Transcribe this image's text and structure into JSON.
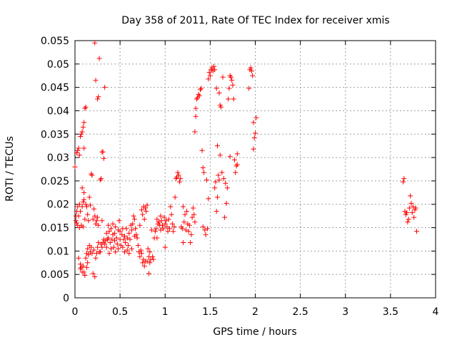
{
  "chart_data": {
    "type": "scatter",
    "title": "Day 358 of 2011, Rate Of TEC Index for receiver xmis",
    "xlabel": "GPS time / hours",
    "ylabel": "ROTI / TECUs",
    "xlim": [
      0,
      4
    ],
    "ylim": [
      0,
      0.055
    ],
    "x_ticks": [
      "0",
      "0.5",
      "1",
      "1.5",
      "2",
      "2.5",
      "3",
      "3.5",
      "4"
    ],
    "y_ticks": [
      "0",
      "0.005",
      "0.01",
      "0.015",
      "0.02",
      "0.025",
      "0.03",
      "0.035",
      "0.04",
      "0.045",
      "0.05",
      "0.055"
    ],
    "grid": true,
    "marker": "+",
    "color": "#ff0000",
    "series": [
      {
        "name": "",
        "points": [
          [
            0.0,
            0.028
          ],
          [
            0.01,
            0.0175
          ],
          [
            0.01,
            0.0165
          ],
          [
            0.02,
            0.031
          ],
          [
            0.02,
            0.0185
          ],
          [
            0.02,
            0.016
          ],
          [
            0.03,
            0.0315
          ],
          [
            0.03,
            0.0195
          ],
          [
            0.03,
            0.0155
          ],
          [
            0.04,
            0.032
          ],
          [
            0.04,
            0.0175
          ],
          [
            0.04,
            0.0085
          ],
          [
            0.05,
            0.0305
          ],
          [
            0.05,
            0.02
          ],
          [
            0.05,
            0.015
          ],
          [
            0.06,
            0.0345
          ],
          [
            0.06,
            0.0185
          ],
          [
            0.06,
            0.0072
          ],
          [
            0.06,
            0.0062
          ],
          [
            0.07,
            0.035
          ],
          [
            0.07,
            0.0155
          ],
          [
            0.07,
            0.0065
          ],
          [
            0.08,
            0.0355
          ],
          [
            0.08,
            0.0195
          ],
          [
            0.08,
            0.0235
          ],
          [
            0.08,
            0.0055
          ],
          [
            0.09,
            0.0365
          ],
          [
            0.09,
            0.0205
          ],
          [
            0.09,
            0.0068
          ],
          [
            0.09,
            0.0152
          ],
          [
            0.1,
            0.0375
          ],
          [
            0.1,
            0.032
          ],
          [
            0.1,
            0.021
          ],
          [
            0.1,
            0.0055
          ],
          [
            0.1,
            0.0225
          ],
          [
            0.11,
            0.0405
          ],
          [
            0.11,
            0.0168
          ],
          [
            0.11,
            0.0048
          ],
          [
            0.12,
            0.0408
          ],
          [
            0.12,
            0.02
          ],
          [
            0.12,
            0.0085
          ],
          [
            0.13,
            0.0195
          ],
          [
            0.13,
            0.0095
          ],
          [
            0.13,
            0.0065
          ],
          [
            0.14,
            0.0178
          ],
          [
            0.14,
            0.0105
          ],
          [
            0.14,
            0.0075
          ],
          [
            0.15,
            0.0165
          ],
          [
            0.15,
            0.0092
          ],
          [
            0.16,
            0.0215
          ],
          [
            0.16,
            0.0112
          ],
          [
            0.17,
            0.0198
          ],
          [
            0.17,
            0.0098
          ],
          [
            0.18,
            0.0265
          ],
          [
            0.18,
            0.0108
          ],
          [
            0.19,
            0.0262
          ],
          [
            0.19,
            0.0095
          ],
          [
            0.2,
            0.0168
          ],
          [
            0.2,
            0.0052
          ],
          [
            0.21,
            0.019
          ],
          [
            0.21,
            0.0102
          ],
          [
            0.22,
            0.0545
          ],
          [
            0.22,
            0.0175
          ],
          [
            0.22,
            0.0045
          ],
          [
            0.23,
            0.0465
          ],
          [
            0.23,
            0.0158
          ],
          [
            0.23,
            0.0085
          ],
          [
            0.24,
            0.0165
          ],
          [
            0.24,
            0.0095
          ],
          [
            0.25,
            0.0425
          ],
          [
            0.25,
            0.0172
          ],
          [
            0.25,
            0.0108
          ],
          [
            0.26,
            0.043
          ],
          [
            0.26,
            0.0155
          ],
          [
            0.26,
            0.0118
          ],
          [
            0.27,
            0.0512
          ],
          [
            0.27,
            0.0098
          ],
          [
            0.28,
            0.0252
          ],
          [
            0.28,
            0.0098
          ],
          [
            0.29,
            0.0255
          ],
          [
            0.29,
            0.0115
          ],
          [
            0.3,
            0.0312
          ],
          [
            0.3,
            0.0108
          ],
          [
            0.3,
            0.0165
          ],
          [
            0.31,
            0.0312
          ],
          [
            0.31,
            0.0118
          ],
          [
            0.32,
            0.0298
          ],
          [
            0.32,
            0.0125
          ],
          [
            0.33,
            0.045
          ],
          [
            0.33,
            0.0115
          ],
          [
            0.34,
            0.0122
          ],
          [
            0.35,
            0.0138
          ],
          [
            0.35,
            0.0108
          ],
          [
            0.36,
            0.0125
          ],
          [
            0.37,
            0.0128
          ],
          [
            0.37,
            0.0155
          ],
          [
            0.38,
            0.0142
          ],
          [
            0.38,
            0.0095
          ],
          [
            0.39,
            0.0118
          ],
          [
            0.4,
            0.0148
          ],
          [
            0.4,
            0.0105
          ],
          [
            0.41,
            0.0125
          ],
          [
            0.42,
            0.0135
          ],
          [
            0.42,
            0.0158
          ],
          [
            0.43,
            0.0108
          ],
          [
            0.44,
            0.0138
          ],
          [
            0.44,
            0.0122
          ],
          [
            0.45,
            0.0152
          ],
          [
            0.45,
            0.0098
          ],
          [
            0.46,
            0.0128
          ],
          [
            0.47,
            0.0115
          ],
          [
            0.48,
            0.0145
          ],
          [
            0.48,
            0.0105
          ],
          [
            0.49,
            0.0165
          ],
          [
            0.5,
            0.0125
          ],
          [
            0.5,
            0.0142
          ],
          [
            0.51,
            0.0112
          ],
          [
            0.52,
            0.0135
          ],
          [
            0.53,
            0.0108
          ],
          [
            0.53,
            0.0148
          ],
          [
            0.54,
            0.0125
          ],
          [
            0.55,
            0.0098
          ],
          [
            0.55,
            0.0132
          ],
          [
            0.56,
            0.0118
          ],
          [
            0.57,
            0.0148
          ],
          [
            0.58,
            0.0128
          ],
          [
            0.58,
            0.0102
          ],
          [
            0.59,
            0.0112
          ],
          [
            0.6,
            0.0138
          ],
          [
            0.6,
            0.0095
          ],
          [
            0.61,
            0.0125
          ],
          [
            0.62,
            0.0155
          ],
          [
            0.63,
            0.0145
          ],
          [
            0.63,
            0.0105
          ],
          [
            0.64,
            0.0158
          ],
          [
            0.65,
            0.0175
          ],
          [
            0.66,
            0.0168
          ],
          [
            0.66,
            0.0132
          ],
          [
            0.67,
            0.0148
          ],
          [
            0.68,
            0.0135
          ],
          [
            0.69,
            0.0128
          ],
          [
            0.7,
            0.0112
          ],
          [
            0.71,
            0.0098
          ],
          [
            0.72,
            0.0155
          ],
          [
            0.72,
            0.0088
          ],
          [
            0.73,
            0.0102
          ],
          [
            0.74,
            0.0188
          ],
          [
            0.74,
            0.0095
          ],
          [
            0.75,
            0.0178
          ],
          [
            0.75,
            0.0075
          ],
          [
            0.76,
            0.0195
          ],
          [
            0.76,
            0.0082
          ],
          [
            0.77,
            0.0168
          ],
          [
            0.77,
            0.0068
          ],
          [
            0.78,
            0.0192
          ],
          [
            0.78,
            0.0078
          ],
          [
            0.79,
            0.0185
          ],
          [
            0.8,
            0.0198
          ],
          [
            0.8,
            0.0078
          ],
          [
            0.81,
            0.0105
          ],
          [
            0.82,
            0.0052
          ],
          [
            0.82,
            0.0088
          ],
          [
            0.83,
            0.0075
          ],
          [
            0.83,
            0.0098
          ],
          [
            0.84,
            0.0082
          ],
          [
            0.85,
            0.0145
          ],
          [
            0.86,
            0.0088
          ],
          [
            0.87,
            0.0082
          ],
          [
            0.88,
            0.0128
          ],
          [
            0.89,
            0.0142
          ],
          [
            0.9,
            0.0148
          ],
          [
            0.91,
            0.0168
          ],
          [
            0.91,
            0.0128
          ],
          [
            0.92,
            0.0158
          ],
          [
            0.93,
            0.0162
          ],
          [
            0.94,
            0.0155
          ],
          [
            0.95,
            0.0145
          ],
          [
            0.95,
            0.0175
          ],
          [
            0.96,
            0.0165
          ],
          [
            0.97,
            0.0155
          ],
          [
            0.98,
            0.0148
          ],
          [
            0.99,
            0.0172
          ],
          [
            1.0,
            0.0158
          ],
          [
            1.0,
            0.0108
          ],
          [
            1.01,
            0.0165
          ],
          [
            1.02,
            0.0152
          ],
          [
            1.03,
            0.0142
          ],
          [
            1.04,
            0.0168
          ],
          [
            1.05,
            0.0148
          ],
          [
            1.06,
            0.0195
          ],
          [
            1.07,
            0.0178
          ],
          [
            1.08,
            0.0158
          ],
          [
            1.09,
            0.0142
          ],
          [
            1.1,
            0.0152
          ],
          [
            1.11,
            0.0215
          ],
          [
            1.12,
            0.0255
          ],
          [
            1.13,
            0.0258
          ],
          [
            1.14,
            0.0268
          ],
          [
            1.15,
            0.0262
          ],
          [
            1.16,
            0.0248
          ],
          [
            1.17,
            0.0255
          ],
          [
            1.18,
            0.0152
          ],
          [
            1.19,
            0.0148
          ],
          [
            1.2,
            0.0195
          ],
          [
            1.2,
            0.0118
          ],
          [
            1.21,
            0.0162
          ],
          [
            1.22,
            0.0178
          ],
          [
            1.23,
            0.0145
          ],
          [
            1.24,
            0.0185
          ],
          [
            1.25,
            0.0158
          ],
          [
            1.26,
            0.0142
          ],
          [
            1.27,
            0.0155
          ],
          [
            1.28,
            0.0118
          ],
          [
            1.29,
            0.0135
          ],
          [
            1.3,
            0.0172
          ],
          [
            1.31,
            0.0192
          ],
          [
            1.32,
            0.0178
          ],
          [
            1.33,
            0.0355
          ],
          [
            1.33,
            0.0162
          ],
          [
            1.34,
            0.0405
          ],
          [
            1.34,
            0.0388
          ],
          [
            1.35,
            0.0425
          ],
          [
            1.36,
            0.0428
          ],
          [
            1.37,
            0.0435
          ],
          [
            1.38,
            0.0432
          ],
          [
            1.39,
            0.0445
          ],
          [
            1.4,
            0.0448
          ],
          [
            1.41,
            0.0315
          ],
          [
            1.42,
            0.0278
          ],
          [
            1.42,
            0.0152
          ],
          [
            1.43,
            0.0268
          ],
          [
            1.44,
            0.0145
          ],
          [
            1.45,
            0.0135
          ],
          [
            1.46,
            0.0252
          ],
          [
            1.47,
            0.0148
          ],
          [
            1.48,
            0.0212
          ],
          [
            1.48,
            0.0468
          ],
          [
            1.49,
            0.0482
          ],
          [
            1.5,
            0.0475
          ],
          [
            1.51,
            0.0488
          ],
          [
            1.52,
            0.0492
          ],
          [
            1.53,
            0.0485
          ],
          [
            1.54,
            0.0495
          ],
          [
            1.55,
            0.0488
          ],
          [
            1.55,
            0.0235
          ],
          [
            1.56,
            0.0248
          ],
          [
            1.57,
            0.0448
          ],
          [
            1.57,
            0.0185
          ],
          [
            1.58,
            0.0325
          ],
          [
            1.58,
            0.0215
          ],
          [
            1.59,
            0.0262
          ],
          [
            1.6,
            0.0438
          ],
          [
            1.6,
            0.0252
          ],
          [
            1.61,
            0.0412
          ],
          [
            1.61,
            0.0305
          ],
          [
            1.62,
            0.0408
          ],
          [
            1.63,
            0.0268
          ],
          [
            1.64,
            0.0472
          ],
          [
            1.65,
            0.0255
          ],
          [
            1.66,
            0.0172
          ],
          [
            1.67,
            0.0245
          ],
          [
            1.68,
            0.0202
          ],
          [
            1.69,
            0.0235
          ],
          [
            1.7,
            0.0425
          ],
          [
            1.71,
            0.0448
          ],
          [
            1.72,
            0.0302
          ],
          [
            1.72,
            0.0475
          ],
          [
            1.73,
            0.0472
          ],
          [
            1.74,
            0.0465
          ],
          [
            1.75,
            0.0455
          ],
          [
            1.76,
            0.0425
          ],
          [
            1.77,
            0.0295
          ],
          [
            1.78,
            0.0268
          ],
          [
            1.79,
            0.0282
          ],
          [
            1.8,
            0.0285
          ],
          [
            1.8,
            0.0308
          ],
          [
            1.93,
            0.0448
          ],
          [
            1.94,
            0.0488
          ],
          [
            1.95,
            0.0492
          ],
          [
            1.96,
            0.0485
          ],
          [
            1.97,
            0.0475
          ],
          [
            1.98,
            0.0375
          ],
          [
            1.98,
            0.0318
          ],
          [
            1.99,
            0.0342
          ],
          [
            2.0,
            0.0352
          ],
          [
            2.01,
            0.0385
          ],
          [
            3.64,
            0.0248
          ],
          [
            3.65,
            0.0255
          ],
          [
            3.66,
            0.0185
          ],
          [
            3.67,
            0.0178
          ],
          [
            3.68,
            0.0182
          ],
          [
            3.69,
            0.0162
          ],
          [
            3.7,
            0.0168
          ],
          [
            3.71,
            0.0192
          ],
          [
            3.72,
            0.0218
          ],
          [
            3.73,
            0.0202
          ],
          [
            3.74,
            0.0182
          ],
          [
            3.75,
            0.0195
          ],
          [
            3.76,
            0.0172
          ],
          [
            3.77,
            0.0188
          ],
          [
            3.78,
            0.0192
          ],
          [
            3.79,
            0.0142
          ]
        ]
      }
    ]
  }
}
